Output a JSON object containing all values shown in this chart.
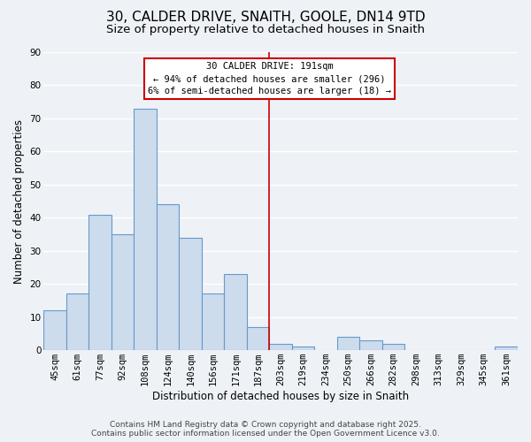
{
  "title": "30, CALDER DRIVE, SNAITH, GOOLE, DN14 9TD",
  "subtitle": "Size of property relative to detached houses in Snaith",
  "xlabel": "Distribution of detached houses by size in Snaith",
  "ylabel": "Number of detached properties",
  "bar_labels": [
    "45sqm",
    "61sqm",
    "77sqm",
    "92sqm",
    "108sqm",
    "124sqm",
    "140sqm",
    "156sqm",
    "171sqm",
    "187sqm",
    "203sqm",
    "219sqm",
    "234sqm",
    "250sqm",
    "266sqm",
    "282sqm",
    "298sqm",
    "313sqm",
    "329sqm",
    "345sqm",
    "361sqm"
  ],
  "bar_heights": [
    12,
    17,
    41,
    35,
    73,
    44,
    34,
    17,
    23,
    7,
    2,
    1,
    0,
    4,
    3,
    2,
    0,
    0,
    0,
    0,
    1
  ],
  "bar_color": "#ccdcec",
  "bar_edge_color": "#6699cc",
  "property_line_x": 9.5,
  "property_line_label": "30 CALDER DRIVE: 191sqm",
  "annotation_line1": "← 94% of detached houses are smaller (296)",
  "annotation_line2": "6% of semi-detached houses are larger (18) →",
  "annotation_box_color": "#ffffff",
  "annotation_box_edge_color": "#cc0000",
  "vline_color": "#cc0000",
  "ylim": [
    0,
    90
  ],
  "xlim": [
    -0.5,
    20.5
  ],
  "footer1": "Contains HM Land Registry data © Crown copyright and database right 2025.",
  "footer2": "Contains public sector information licensed under the Open Government Licence v3.0.",
  "bg_color": "#eef2f7",
  "grid_color": "#ffffff",
  "title_fontsize": 11,
  "subtitle_fontsize": 9.5,
  "axis_label_fontsize": 8.5,
  "tick_fontsize": 7.5,
  "footer_fontsize": 6.5,
  "annotation_fontsize": 7.5
}
